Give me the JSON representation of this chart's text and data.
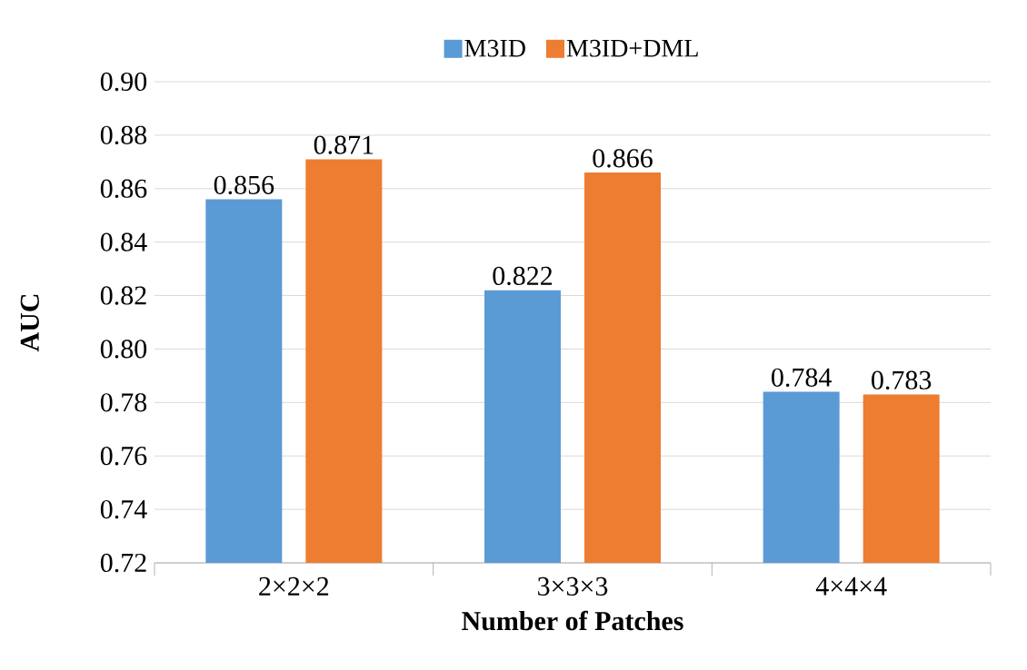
{
  "chart_data": {
    "type": "bar",
    "xlabel": "Number of Patches",
    "ylabel": "AUC",
    "categories": [
      "2×2×2",
      "3×3×3",
      "4×4×4"
    ],
    "series": [
      {
        "name": "M3ID",
        "color": "#5b9bd5",
        "values": [
          0.856,
          0.822,
          0.784
        ]
      },
      {
        "name": "M3ID+DML",
        "color": "#ed7d31",
        "values": [
          0.871,
          0.866,
          0.783
        ]
      }
    ],
    "ylim": [
      0.72,
      0.9
    ],
    "yticks": [
      {
        "value": 0.72,
        "label": "0.72"
      },
      {
        "value": 0.74,
        "label": "0.74"
      },
      {
        "value": 0.76,
        "label": "0.76"
      },
      {
        "value": 0.78,
        "label": "0.78"
      },
      {
        "value": 0.8,
        "label": "0.80"
      },
      {
        "value": 0.82,
        "label": "0.82"
      },
      {
        "value": 0.84,
        "label": "0.84"
      },
      {
        "value": 0.86,
        "label": "0.86"
      },
      {
        "value": 0.88,
        "label": "0.88"
      },
      {
        "value": 0.9,
        "label": "0.90"
      }
    ],
    "grid": "y",
    "legend": "top",
    "data_labels": true
  }
}
